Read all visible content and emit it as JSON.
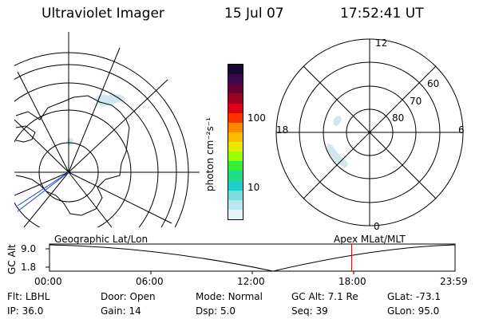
{
  "header": {
    "instrument": "Ultraviolet Imager",
    "date": "15 Jul 07",
    "time": "17:52:41 UT"
  },
  "geo_panel": {
    "label": "Geographic Lat/Lon"
  },
  "polar_panel": {
    "label": "Apex MLat/MLT",
    "mlt_labels": [
      "12",
      "18",
      "6",
      "0"
    ],
    "lat_labels": [
      "60",
      "70",
      "80"
    ]
  },
  "colorbar": {
    "unit_label": "photon cm⁻²s⁻¹",
    "ticks": [
      "100",
      "10"
    ],
    "colors": [
      "#1a0a33",
      "#3a0a4a",
      "#660033",
      "#a00020",
      "#e0001a",
      "#ff3300",
      "#ff8800",
      "#ffbb00",
      "#e8e800",
      "#99ff00",
      "#33ee33",
      "#22dd88",
      "#22cccc",
      "#77dddd",
      "#bbe8ee",
      "#e6f2f5"
    ]
  },
  "altitude_plot": {
    "ylabel": "GC Alt",
    "yticks": [
      "9.0",
      "1.8"
    ],
    "xticks": [
      "00:00",
      "06:00",
      "12:00",
      "18:00",
      "23:59"
    ],
    "marker_time_hours": 17.88,
    "marker_color": "#e00000"
  },
  "status": {
    "row1": [
      {
        "label": "Flt:",
        "value": "LBHL"
      },
      {
        "label": "Door:",
        "value": "Open"
      },
      {
        "label": "Mode:",
        "value": "Normal"
      },
      {
        "label": "GC Alt:",
        "value": "7.1 Re"
      },
      {
        "label": "GLat:",
        "value": "-73.1"
      }
    ],
    "row2": [
      {
        "label": "IP:",
        "value": "36.0"
      },
      {
        "label": "Gain:",
        "value": "14"
      },
      {
        "label": "Dsp:",
        "value": "5.0"
      },
      {
        "label": "Seq:",
        "value": "39"
      },
      {
        "label": "GLon:",
        "value": "95.0"
      }
    ]
  }
}
